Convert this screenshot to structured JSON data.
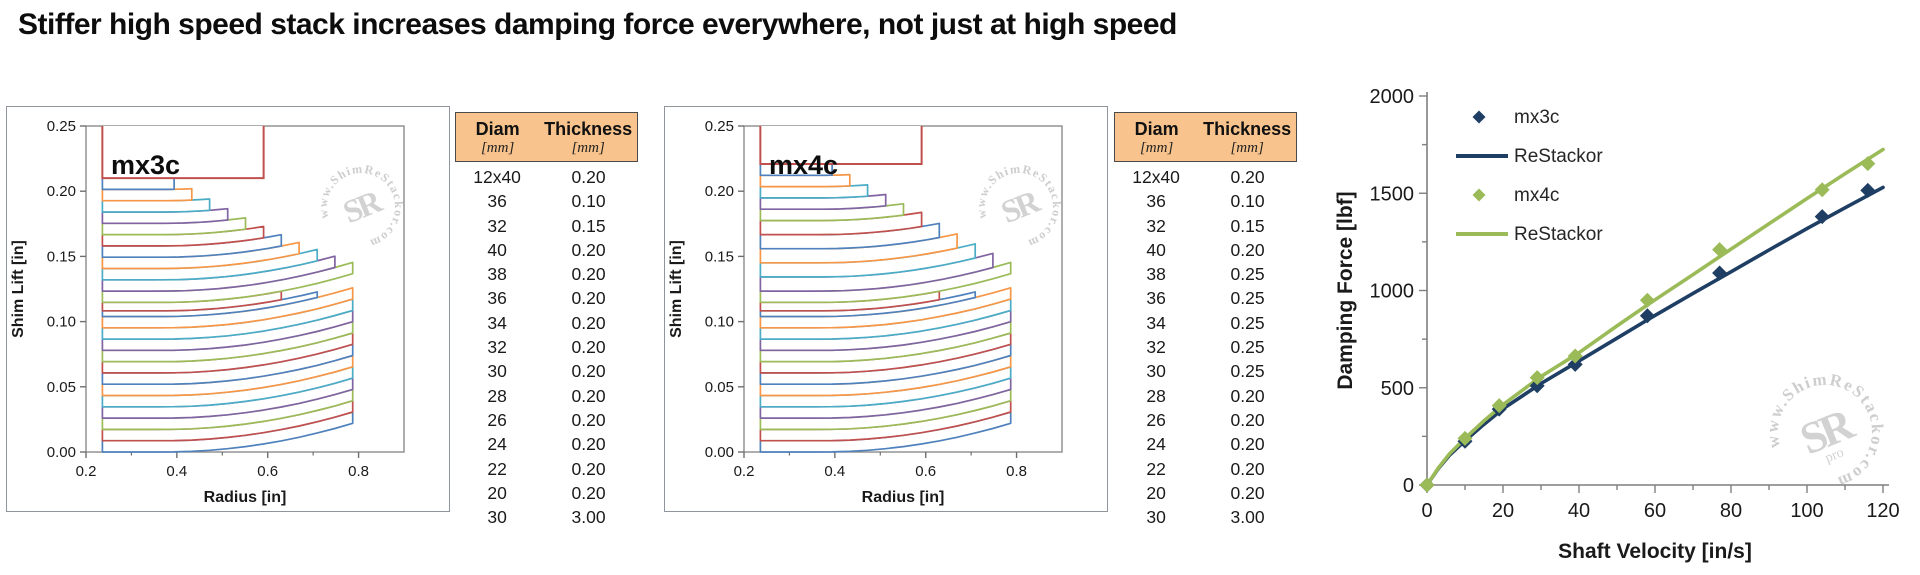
{
  "title": "Stiffer high speed stack increases damping force everywhere, not just at high speed",
  "watermark": {
    "ring_text": "www.ShimReStackor.com",
    "monogram": "SR",
    "pro": "pro"
  },
  "shim_palette": [
    "#4F81BD",
    "#C0504D",
    "#9BBB59",
    "#8064A2",
    "#4BACC6",
    "#F79646"
  ],
  "tables": [
    {
      "name": "mx3c stack",
      "header_fill": "#F8C38C",
      "col_headers": [
        "Diam",
        "Thickness"
      ],
      "col_units": [
        "[mm]",
        "[mm]"
      ],
      "rows": [
        [
          "12x40",
          "0.20"
        ],
        [
          "36",
          "0.10"
        ],
        [
          "32",
          "0.15"
        ],
        [
          "40",
          "0.20"
        ],
        [
          "38",
          "0.20"
        ],
        [
          "36",
          "0.20"
        ],
        [
          "34",
          "0.20"
        ],
        [
          "32",
          "0.20"
        ],
        [
          "30",
          "0.20"
        ],
        [
          "28",
          "0.20"
        ],
        [
          "26",
          "0.20"
        ],
        [
          "24",
          "0.20"
        ],
        [
          "22",
          "0.20"
        ],
        [
          "20",
          "0.20"
        ],
        [
          "30",
          "3.00"
        ]
      ]
    },
    {
      "name": "mx4c stack",
      "header_fill": "#F8C38C",
      "col_headers": [
        "Diam",
        "Thickness"
      ],
      "col_units": [
        "[mm]",
        "[mm]"
      ],
      "rows": [
        [
          "12x40",
          "0.20"
        ],
        [
          "36",
          "0.10"
        ],
        [
          "32",
          "0.15"
        ],
        [
          "40",
          "0.20"
        ],
        [
          "38",
          "0.25"
        ],
        [
          "36",
          "0.25"
        ],
        [
          "34",
          "0.25"
        ],
        [
          "32",
          "0.25"
        ],
        [
          "30",
          "0.25"
        ],
        [
          "28",
          "0.20"
        ],
        [
          "26",
          "0.20"
        ],
        [
          "24",
          "0.20"
        ],
        [
          "22",
          "0.20"
        ],
        [
          "20",
          "0.20"
        ],
        [
          "30",
          "3.00"
        ]
      ]
    }
  ],
  "chart_data": [
    {
      "type": "shim-stack-outline",
      "label": "mx3c",
      "xlabel": "Radius [in]",
      "ylabel": "Shim Lift [in]",
      "xlim": [
        0.2,
        0.9
      ],
      "ylim": [
        0,
        0.25
      ],
      "x_major_ticks": [
        "0.2",
        "0.4",
        "0.6",
        "0.8"
      ],
      "x_minor_ticks": [
        0.3,
        0.5,
        0.7
      ],
      "y_major_ticks": [
        "0.00",
        "0.05",
        "0.10",
        "0.15",
        "0.20",
        "0.25"
      ],
      "clamp_radius_in": 0.236,
      "backing_plate": {
        "radius_in": 0.591,
        "thickness_mm": 3.0,
        "color": "#C0504D"
      },
      "deflection": {
        "start_x_in": 0.37,
        "tip_x_in": 0.787,
        "max_lift_in": 0.022
      },
      "shims_bottom_to_top": [
        [
          0.787,
          0.2
        ],
        [
          0.787,
          0.2
        ],
        [
          0.787,
          0.2
        ],
        [
          0.787,
          0.2
        ],
        [
          0.787,
          0.2
        ],
        [
          0.787,
          0.2
        ],
        [
          0.787,
          0.2
        ],
        [
          0.787,
          0.2
        ],
        [
          0.787,
          0.2
        ],
        [
          0.787,
          0.2
        ],
        [
          0.787,
          0.2
        ],
        [
          0.787,
          0.2
        ],
        [
          0.709,
          0.1
        ],
        [
          0.63,
          0.15
        ],
        [
          0.787,
          0.2
        ],
        [
          0.748,
          0.2
        ],
        [
          0.709,
          0.2
        ],
        [
          0.669,
          0.2
        ],
        [
          0.63,
          0.2
        ],
        [
          0.591,
          0.2
        ],
        [
          0.551,
          0.2
        ],
        [
          0.512,
          0.2
        ],
        [
          0.472,
          0.2
        ],
        [
          0.433,
          0.2
        ],
        [
          0.394,
          0.2
        ]
      ]
    },
    {
      "type": "shim-stack-outline",
      "label": "mx4c",
      "xlabel": "Radius [in]",
      "ylabel": "Shim Lift [in]",
      "xlim": [
        0.2,
        0.9
      ],
      "ylim": [
        0,
        0.25
      ],
      "x_major_ticks": [
        "0.2",
        "0.4",
        "0.6",
        "0.8"
      ],
      "x_minor_ticks": [
        0.3,
        0.5,
        0.7
      ],
      "y_major_ticks": [
        "0.00",
        "0.05",
        "0.10",
        "0.15",
        "0.20",
        "0.25"
      ],
      "clamp_radius_in": 0.236,
      "backing_plate": {
        "radius_in": 0.591,
        "thickness_mm": 3.0,
        "color": "#C0504D"
      },
      "deflection": {
        "start_x_in": 0.37,
        "tip_x_in": 0.787,
        "max_lift_in": 0.022
      },
      "shims_bottom_to_top": [
        [
          0.787,
          0.2
        ],
        [
          0.787,
          0.2
        ],
        [
          0.787,
          0.2
        ],
        [
          0.787,
          0.2
        ],
        [
          0.787,
          0.2
        ],
        [
          0.787,
          0.2
        ],
        [
          0.787,
          0.2
        ],
        [
          0.787,
          0.2
        ],
        [
          0.787,
          0.2
        ],
        [
          0.787,
          0.2
        ],
        [
          0.787,
          0.2
        ],
        [
          0.787,
          0.2
        ],
        [
          0.709,
          0.1
        ],
        [
          0.63,
          0.15
        ],
        [
          0.787,
          0.2
        ],
        [
          0.748,
          0.25
        ],
        [
          0.709,
          0.25
        ],
        [
          0.669,
          0.25
        ],
        [
          0.63,
          0.25
        ],
        [
          0.591,
          0.25
        ],
        [
          0.551,
          0.2
        ],
        [
          0.512,
          0.2
        ],
        [
          0.472,
          0.2
        ],
        [
          0.433,
          0.2
        ],
        [
          0.394,
          0.2
        ]
      ]
    },
    {
      "type": "line+scatter",
      "xlabel": "Shaft Velocity [in/s]",
      "ylabel": "Damping Force [lbf]",
      "xlim": [
        0,
        120
      ],
      "ylim": [
        0,
        2000
      ],
      "x_major_step": 20,
      "x_minor_step": 10,
      "y_major_step": 500,
      "y_minor_step": 250,
      "legend": [
        {
          "swatch": "diamond",
          "color": "#1F3E64",
          "label": "mx3c"
        },
        {
          "swatch": "line",
          "color": "#1F3E64",
          "label": "ReStackor"
        },
        {
          "swatch": "diamond",
          "color": "#9BBB59",
          "label": "mx4c"
        },
        {
          "swatch": "line",
          "color": "#9BBB59",
          "label": "ReStackor"
        }
      ],
      "series": [
        {
          "name": "ReStackor-mx3c",
          "type": "line",
          "color": "#1F3E64",
          "points": [
            [
              0,
              0
            ],
            [
              3,
              85
            ],
            [
              6,
              155
            ],
            [
              10,
              228
            ],
            [
              15,
              312
            ],
            [
              20,
              392
            ],
            [
              30,
              522
            ],
            [
              40,
              638
            ],
            [
              50,
              755
            ],
            [
              60,
              872
            ],
            [
              70,
              985
            ],
            [
              80,
              1096
            ],
            [
              90,
              1208
            ],
            [
              100,
              1318
            ],
            [
              110,
              1425
            ],
            [
              120,
              1530
            ]
          ]
        },
        {
          "name": "ReStackor-mx4c",
          "type": "line",
          "color": "#9BBB59",
          "points": [
            [
              0,
              0
            ],
            [
              3,
              88
            ],
            [
              6,
              162
            ],
            [
              10,
              240
            ],
            [
              15,
              330
            ],
            [
              20,
              413
            ],
            [
              30,
              558
            ],
            [
              40,
              680
            ],
            [
              50,
              818
            ],
            [
              60,
              952
            ],
            [
              70,
              1082
            ],
            [
              80,
              1213
            ],
            [
              90,
              1343
            ],
            [
              100,
              1473
            ],
            [
              110,
              1600
            ],
            [
              120,
              1725
            ]
          ]
        },
        {
          "name": "mx3c",
          "type": "scatter",
          "color": "#1F3E64",
          "points": [
            [
              0,
              0
            ],
            [
              10,
              225
            ],
            [
              19,
              390
            ],
            [
              29,
              510
            ],
            [
              39,
              620
            ],
            [
              58,
              870
            ],
            [
              77,
              1090
            ],
            [
              104,
              1380
            ],
            [
              116,
              1515
            ]
          ]
        },
        {
          "name": "mx4c",
          "type": "scatter",
          "color": "#9BBB59",
          "points": [
            [
              0,
              0
            ],
            [
              10,
              240
            ],
            [
              19,
              408
            ],
            [
              29,
              552
            ],
            [
              39,
              663
            ],
            [
              58,
              950
            ],
            [
              77,
              1210
            ],
            [
              104,
              1518
            ],
            [
              116,
              1652
            ]
          ]
        }
      ]
    }
  ]
}
